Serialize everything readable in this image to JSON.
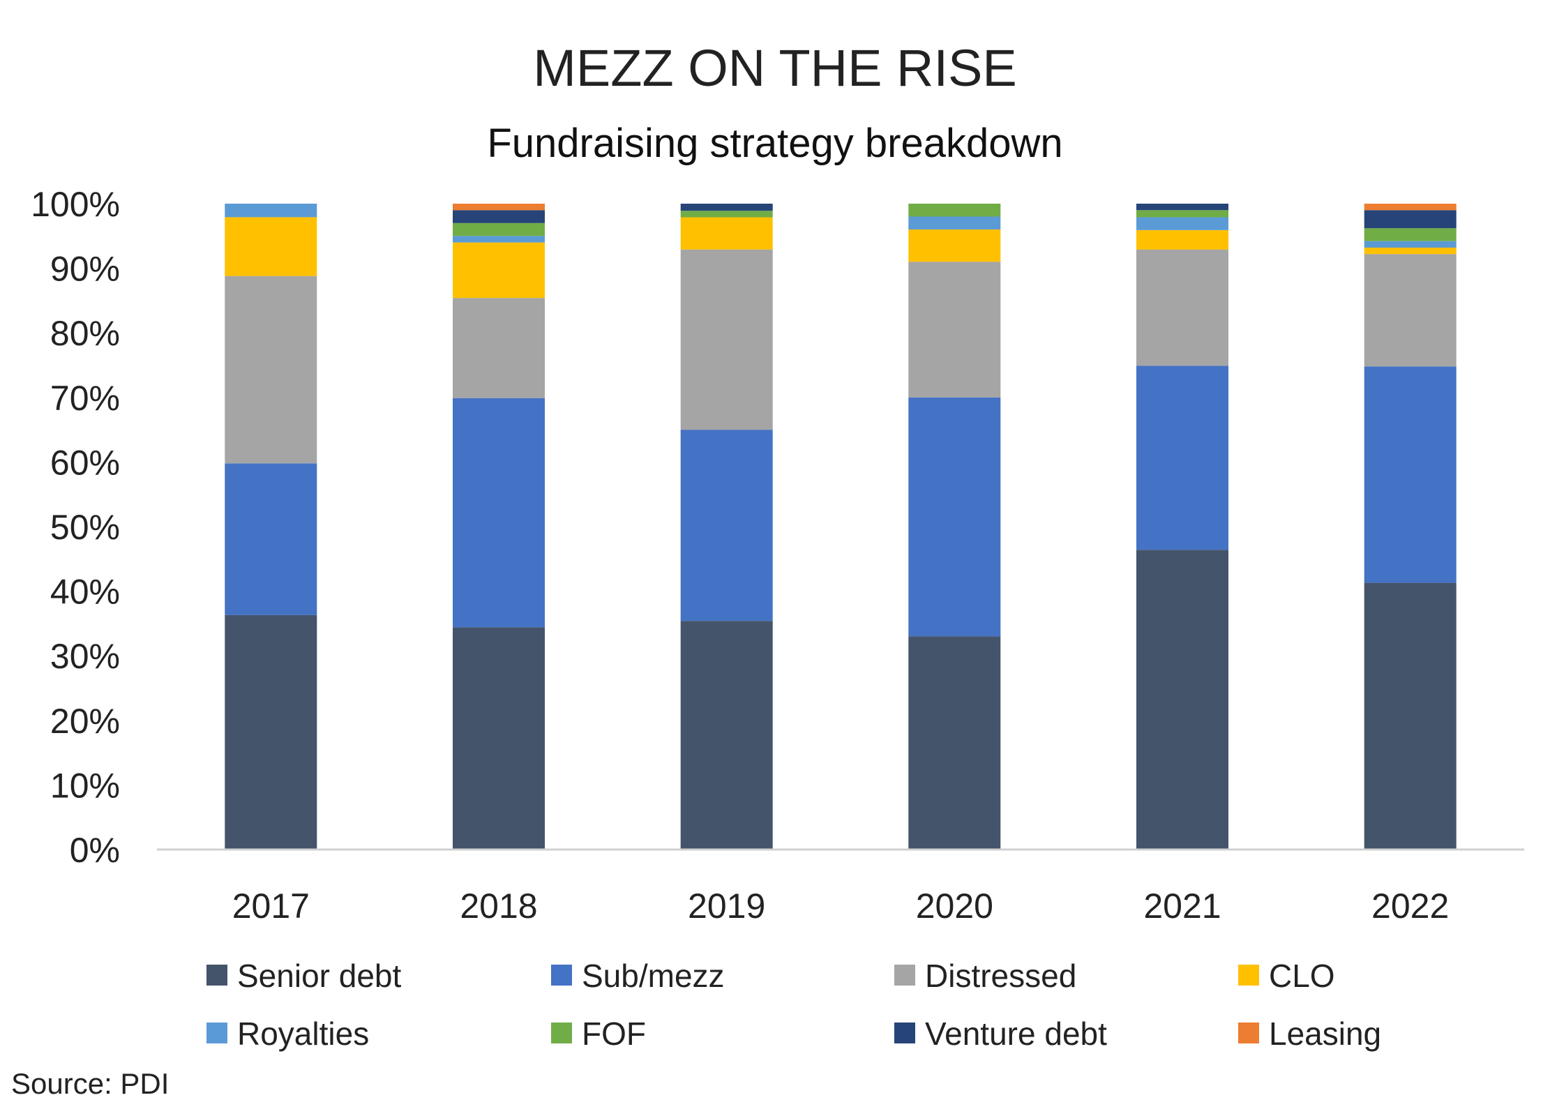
{
  "chart_data": {
    "type": "bar",
    "stacked": true,
    "title": "MEZZ ON THE RISE",
    "subtitle": "Fundraising strategy breakdown",
    "source": "Source: PDI",
    "categories": [
      "2017",
      "2018",
      "2019",
      "2020",
      "2021",
      "2022"
    ],
    "ylim": [
      0,
      100
    ],
    "yticks": [
      "0%",
      "10%",
      "20%",
      "30%",
      "40%",
      "50%",
      "60%",
      "70%",
      "80%",
      "90%",
      "100%"
    ],
    "grid": false,
    "legend_position": "bottom",
    "series": [
      {
        "name": "Senior debt",
        "color": "#44546A",
        "values": [
          36.3,
          34.4,
          35.4,
          33.0,
          46.4,
          41.3
        ]
      },
      {
        "name": "Sub/mezz",
        "color": "#4472C4",
        "values": [
          23.5,
          35.5,
          29.6,
          37.0,
          28.5,
          33.5
        ]
      },
      {
        "name": "Distressed",
        "color": "#A5A5A5",
        "values": [
          29.0,
          15.5,
          27.9,
          21.0,
          18.0,
          17.4
        ]
      },
      {
        "name": "CLO",
        "color": "#FFC000",
        "values": [
          9.1,
          8.6,
          5.0,
          5.0,
          3.0,
          1.0
        ]
      },
      {
        "name": "Royalties",
        "color": "#5B9BD5",
        "values": [
          2.1,
          1.0,
          0.0,
          2.0,
          2.0,
          1.0
        ]
      },
      {
        "name": "FOF",
        "color": "#70AD47",
        "values": [
          0.0,
          2.0,
          1.0,
          2.0,
          1.1,
          2.0
        ]
      },
      {
        "name": "Venture debt",
        "color": "#264478",
        "values": [
          0.0,
          2.0,
          1.1,
          0.0,
          1.0,
          2.8
        ]
      },
      {
        "name": "Leasing",
        "color": "#ED7D31",
        "values": [
          0.0,
          1.0,
          0.0,
          0.0,
          0.0,
          1.0
        ]
      }
    ]
  }
}
